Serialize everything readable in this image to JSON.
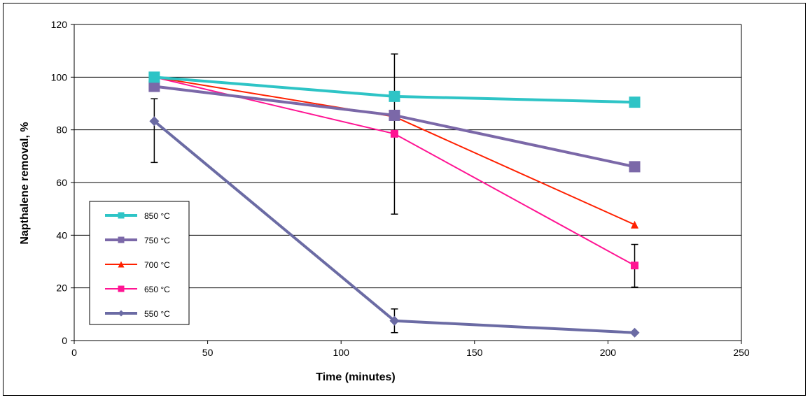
{
  "chart_data": {
    "type": "line",
    "title": "",
    "xlabel": "Time  (minutes)",
    "ylabel": "Napthalene removal, %",
    "xlim": [
      0,
      250
    ],
    "ylim": [
      0,
      120
    ],
    "xticks": [
      0,
      50,
      100,
      150,
      200,
      250
    ],
    "yticks": [
      0,
      20,
      40,
      60,
      80,
      100,
      120
    ],
    "grid": "horizontal",
    "legend_position": "left-bottom",
    "series": [
      {
        "name": "850 °C",
        "color": "#2EC4C6",
        "marker": "square",
        "x": [
          30,
          120,
          210
        ],
        "y": [
          100,
          92.7,
          90.5
        ]
      },
      {
        "name": "750 °C",
        "color": "#7B68A8",
        "marker": "square",
        "x": [
          30,
          120,
          210
        ],
        "y": [
          96.5,
          85.5,
          66
        ]
      },
      {
        "name": "700 °C",
        "color": "#FF2000",
        "marker": "triangle",
        "x": [
          30,
          120,
          210
        ],
        "y": [
          100,
          85,
          44
        ]
      },
      {
        "name": "650 °C",
        "color": "#FF1493",
        "marker": "square",
        "x": [
          30,
          120,
          210
        ],
        "y": [
          100,
          78.5,
          28.5
        ]
      },
      {
        "name": "550 °C",
        "color": "#6B6BA4",
        "marker": "diamond",
        "x": [
          30,
          120,
          210
        ],
        "y": [
          83.3,
          7.5,
          3
        ]
      }
    ],
    "error_bars": [
      {
        "x": 30,
        "low": 67.6,
        "high": 91.8
      },
      {
        "x": 120,
        "low": 48,
        "high": 108.8
      },
      {
        "x": 120,
        "low": 3,
        "high": 12
      },
      {
        "x": 210,
        "low": 20.3,
        "high": 36.5
      }
    ]
  }
}
